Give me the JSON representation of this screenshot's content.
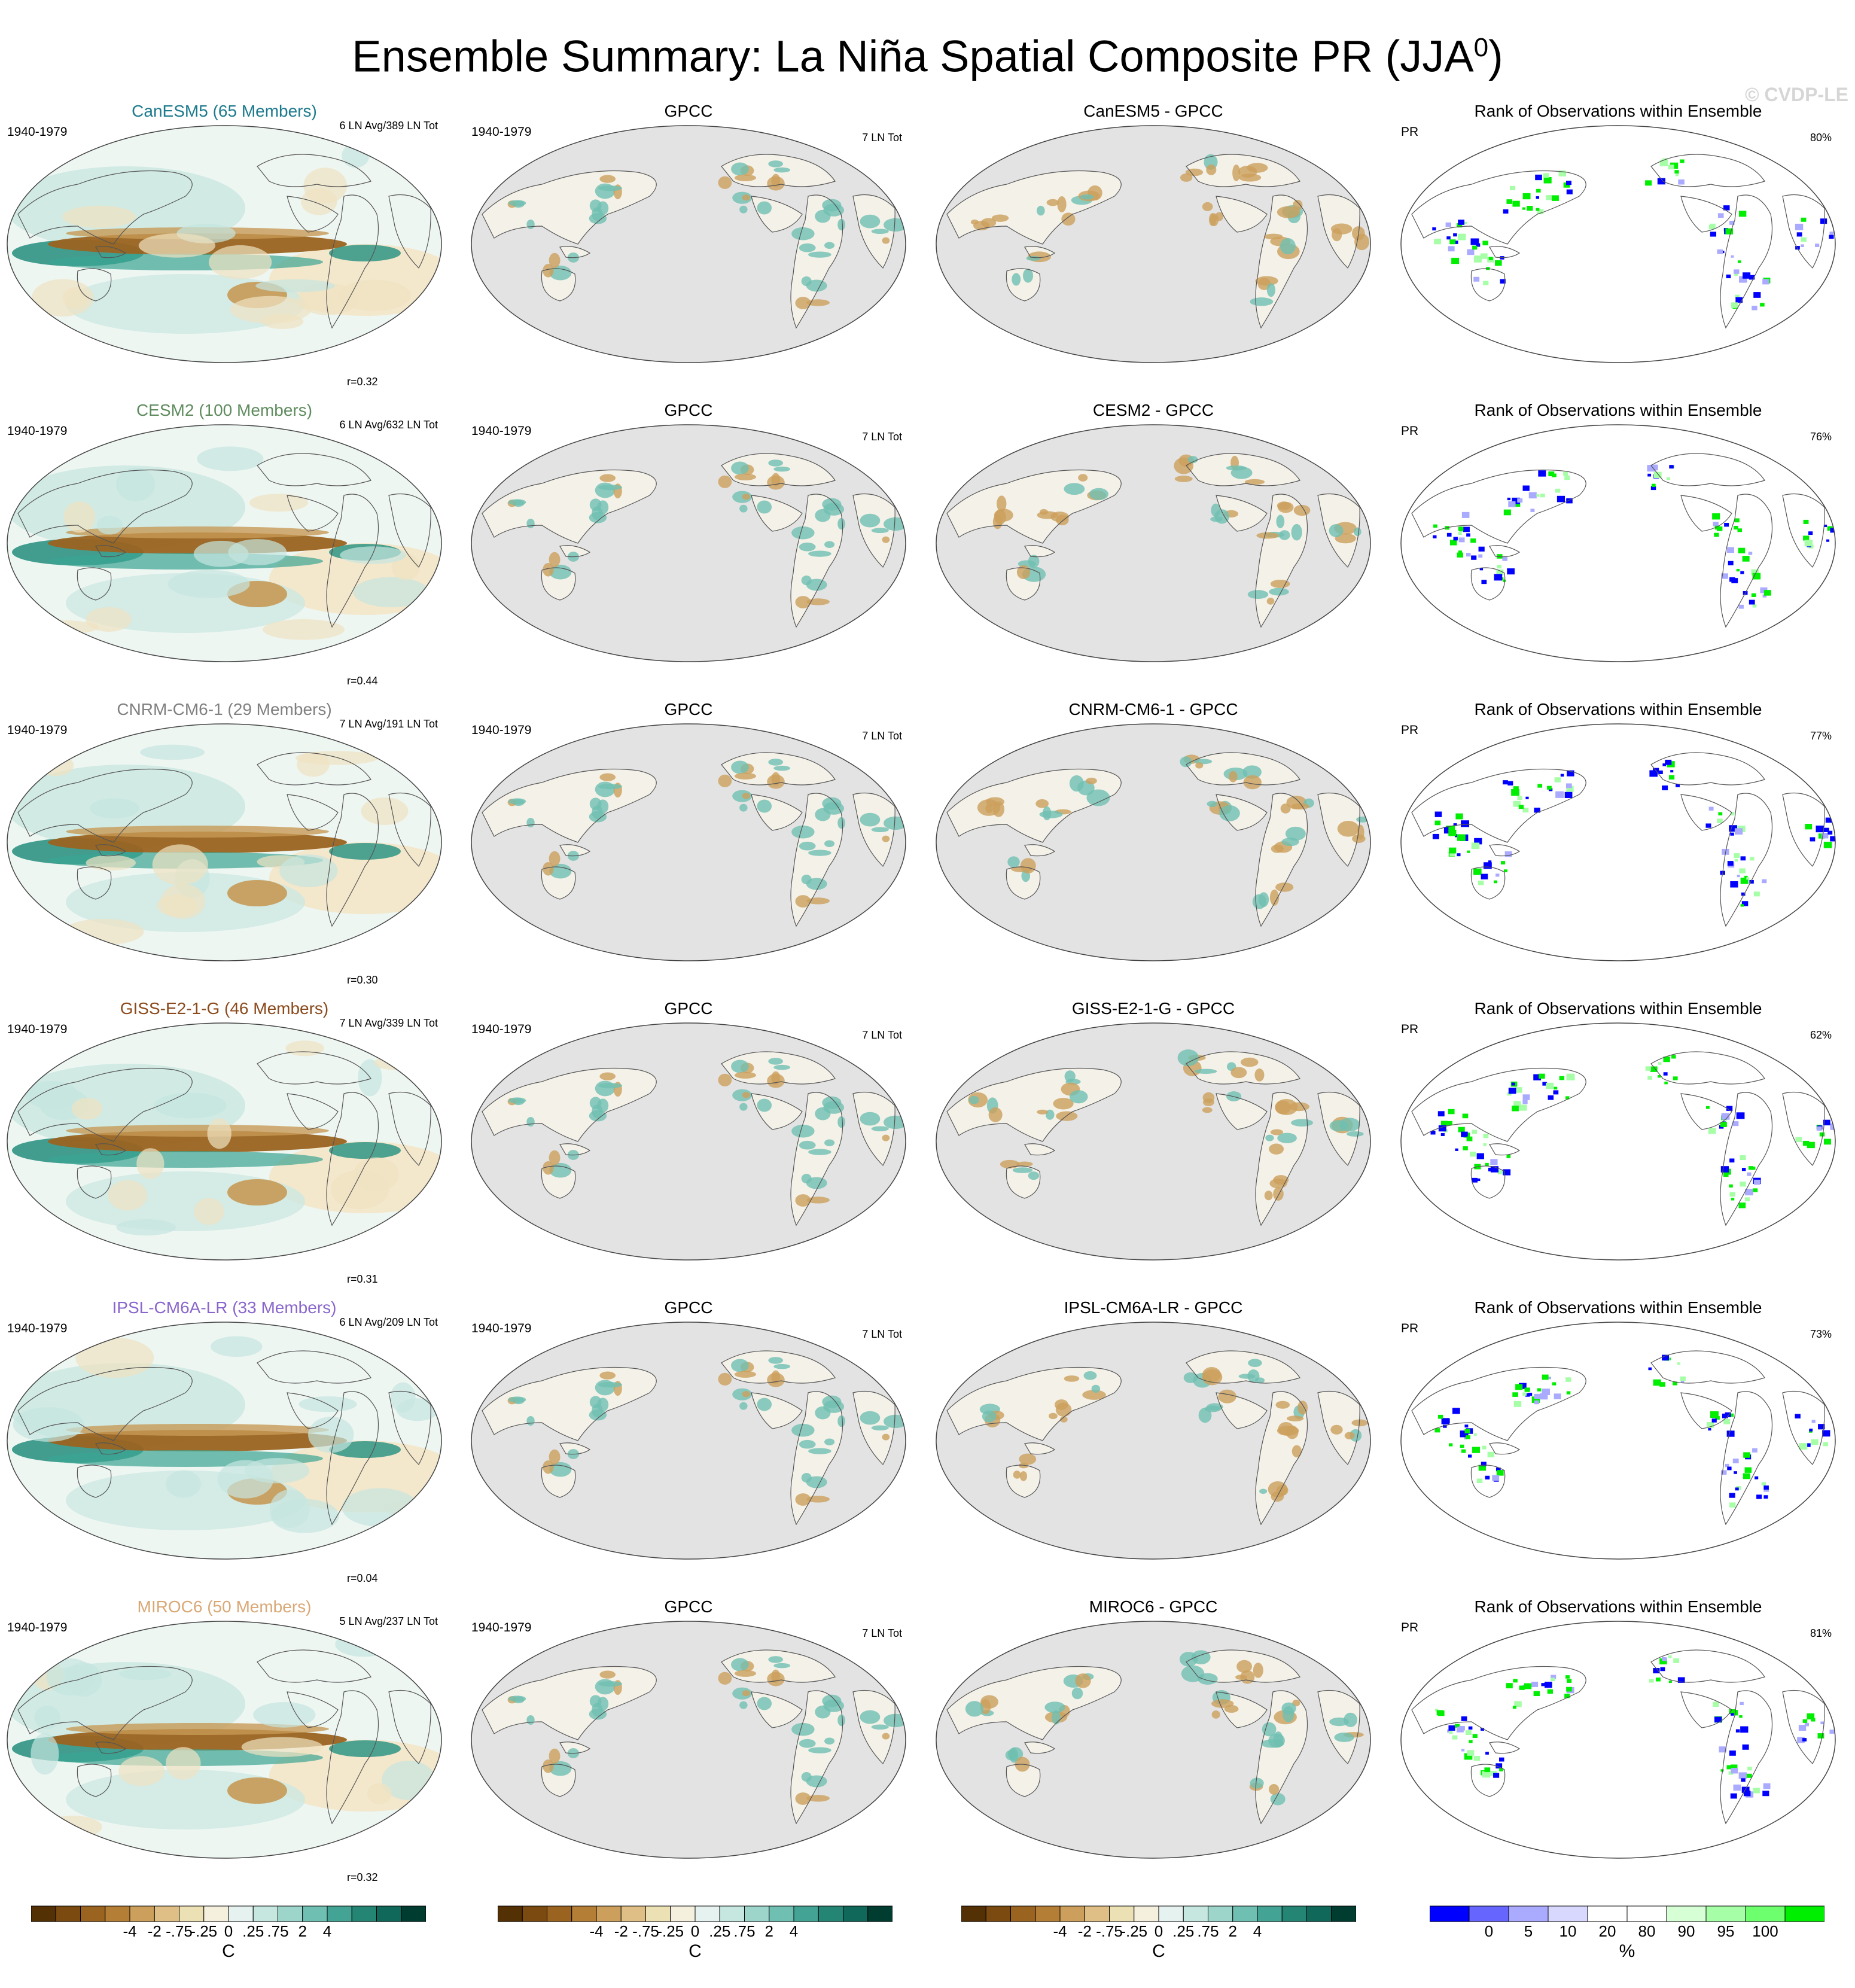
{
  "title": {
    "text": "Ensemble Summary: La Niña Spatial Composite PR (JJA",
    "sup": "0",
    "close": ")"
  },
  "watermark": "© CVDP-LE",
  "rows": [
    {
      "model_title": "CanESM5 (65 Members)",
      "model_color": "#1b7a8c",
      "period": "1940-1979",
      "ln_info": "6 LN Avg/389 LN Tot",
      "r": "r=0.32",
      "obs_title": "GPCC",
      "obs_period": "1940-1979",
      "obs_ln": "7 LN Tot",
      "diff_title": "CanESM5 - GPCC",
      "rank_title": "Rank of Observations within Ensemble",
      "rank_var": "PR",
      "rank_pct": "80%"
    },
    {
      "model_title": "CESM2 (100 Members)",
      "model_color": "#5f8c5f",
      "period": "1940-1979",
      "ln_info": "6 LN Avg/632 LN Tot",
      "r": "r=0.44",
      "obs_title": "GPCC",
      "obs_period": "1940-1979",
      "obs_ln": "7 LN Tot",
      "diff_title": "CESM2 - GPCC",
      "rank_title": "Rank of Observations within Ensemble",
      "rank_var": "PR",
      "rank_pct": "76%"
    },
    {
      "model_title": "CNRM-CM6-1 (29 Members)",
      "model_color": "#808080",
      "period": "1940-1979",
      "ln_info": "7 LN Avg/191 LN Tot",
      "r": "r=0.30",
      "obs_title": "GPCC",
      "obs_period": "1940-1979",
      "obs_ln": "7 LN Tot",
      "diff_title": "CNRM-CM6-1 - GPCC",
      "rank_title": "Rank of Observations within Ensemble",
      "rank_var": "PR",
      "rank_pct": "77%"
    },
    {
      "model_title": "GISS-E2-1-G (46 Members)",
      "model_color": "#8b4a1c",
      "period": "1940-1979",
      "ln_info": "7 LN Avg/339 LN Tot",
      "r": "r=0.31",
      "obs_title": "GPCC",
      "obs_period": "1940-1979",
      "obs_ln": "7 LN Tot",
      "diff_title": "GISS-E2-1-G - GPCC",
      "rank_title": "Rank of Observations within Ensemble",
      "rank_var": "PR",
      "rank_pct": "62%"
    },
    {
      "model_title": "IPSL-CM6A-LR (33 Members)",
      "model_color": "#8a66cc",
      "period": "1940-1979",
      "ln_info": "6 LN Avg/209 LN Tot",
      "r": "r=0.04",
      "obs_title": "GPCC",
      "obs_period": "1940-1979",
      "obs_ln": "7 LN Tot",
      "diff_title": "IPSL-CM6A-LR - GPCC",
      "rank_title": "Rank of Observations within Ensemble",
      "rank_var": "PR",
      "rank_pct": "73%"
    },
    {
      "model_title": "MIROC6 (50 Members)",
      "model_color": "#d9a877",
      "period": "1940-1979",
      "ln_info": "5 LN Avg/237 LN Tot",
      "r": "r=0.32",
      "obs_title": "GPCC",
      "obs_period": "1940-1979",
      "obs_ln": "7 LN Tot",
      "diff_title": "MIROC6 - GPCC",
      "rank_title": "Rank of Observations within Ensemble",
      "rank_var": "PR",
      "rank_pct": "81%"
    }
  ],
  "colorbar_div": {
    "colors": [
      "#543005",
      "#7a4a10",
      "#9a6320",
      "#b57e36",
      "#cca05c",
      "#dfbf85",
      "#ece0b5",
      "#f5f0de",
      "#e6f2f0",
      "#c6e6e0",
      "#9ed5cb",
      "#6fbfb2",
      "#43a395",
      "#258575",
      "#10685a",
      "#003c30"
    ],
    "ticks": [
      "-4",
      "-2",
      "-.75",
      "-.25",
      "0",
      ".25",
      ".75",
      "2",
      "4"
    ],
    "unit": "C"
  },
  "colorbar_rank": {
    "colors": [
      "#0000ff",
      "#6666ff",
      "#aaaaff",
      "#d8d8ff",
      "#ffffff",
      "#ffffff",
      "#d6ffd6",
      "#a6ffa6",
      "#6dff6d",
      "#00ee00"
    ],
    "ticks": [
      "0",
      "5",
      "10",
      "20",
      "80",
      "90",
      "95",
      "100"
    ],
    "unit": "%"
  }
}
